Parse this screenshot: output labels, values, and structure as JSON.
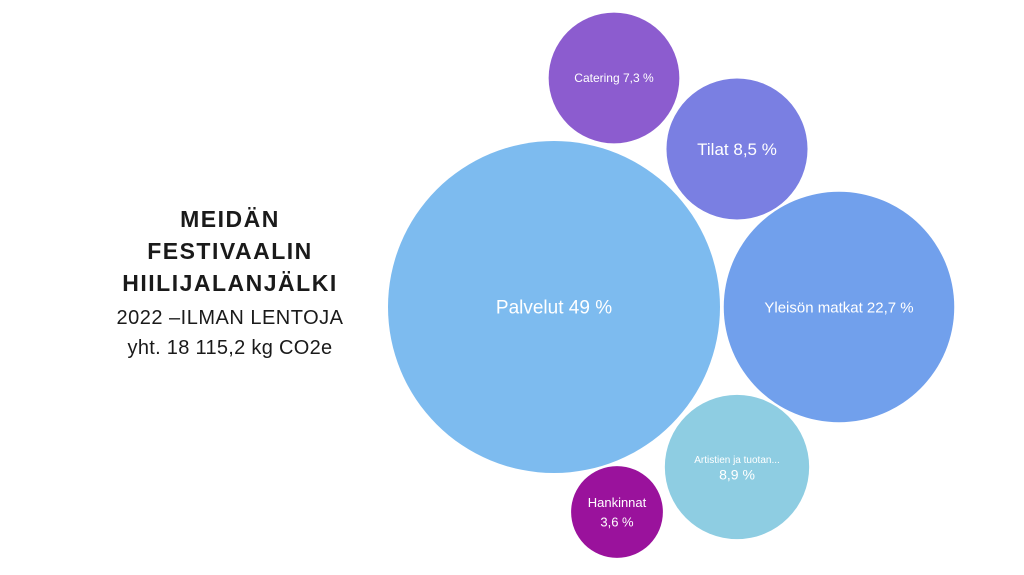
{
  "title": {
    "line1": "MEIDÄN",
    "line2": "FESTIVAALIN",
    "line3": "HIILIJALANJÄLKI",
    "subtitle": "2022 –ILMAN LENTOJA",
    "total": "yht. 18 115,2 kg CO2e"
  },
  "chart_data": {
    "type": "bubble",
    "title": "MEIDÄN FESTIVAALIN HIILIJALANJÄLKI",
    "unit": "%",
    "series": [
      {
        "name": "Palvelut",
        "value": 49,
        "label": "Palvelut 49 %",
        "color": "#7dbbef"
      },
      {
        "name": "Yleisön matkat",
        "value": 22.7,
        "label": "Yleisön matkat 22,7 %",
        "color": "#71a0ec"
      },
      {
        "name": "Artistien ja tuotan...",
        "value": 8.9,
        "label": "Artistien ja tuotan...",
        "label2": "8,9 %",
        "color": "#8ecde2"
      },
      {
        "name": "Tilat",
        "value": 8.5,
        "label": "Tilat 8,5 %",
        "color": "#7a7fe2"
      },
      {
        "name": "Catering",
        "value": 7.3,
        "label": "Catering 7,3 %",
        "color": "#8c5ccf"
      },
      {
        "name": "Hankinnat",
        "value": 3.6,
        "label": "Hankinnat",
        "label2": "3,6 %",
        "color": "#9a129c"
      }
    ]
  }
}
